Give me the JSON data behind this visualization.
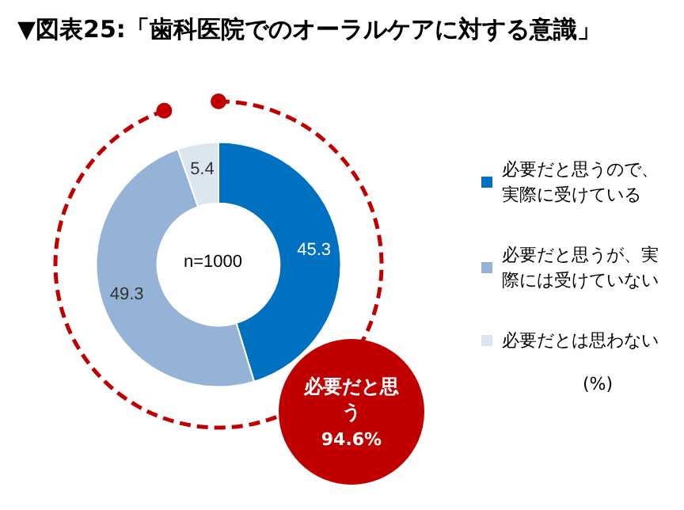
{
  "chart_data": {
    "type": "donut",
    "title": "▼図表25:「歯科医院でのオーラルケアに対する意識」",
    "categories": [
      "必要だと思うので、実際に受けている",
      "必要だと思うが、実際には受けていない",
      "必要だとは思わない"
    ],
    "values": [
      45.3,
      49.3,
      5.4
    ],
    "colors": [
      "#0070c0",
      "#95b3d7",
      "#dce6f1"
    ],
    "data_labels": true,
    "legend": "right",
    "annotations": [
      "n=1000",
      "必要だと思う",
      "94.6%",
      "(%)"
    ]
  }
}
